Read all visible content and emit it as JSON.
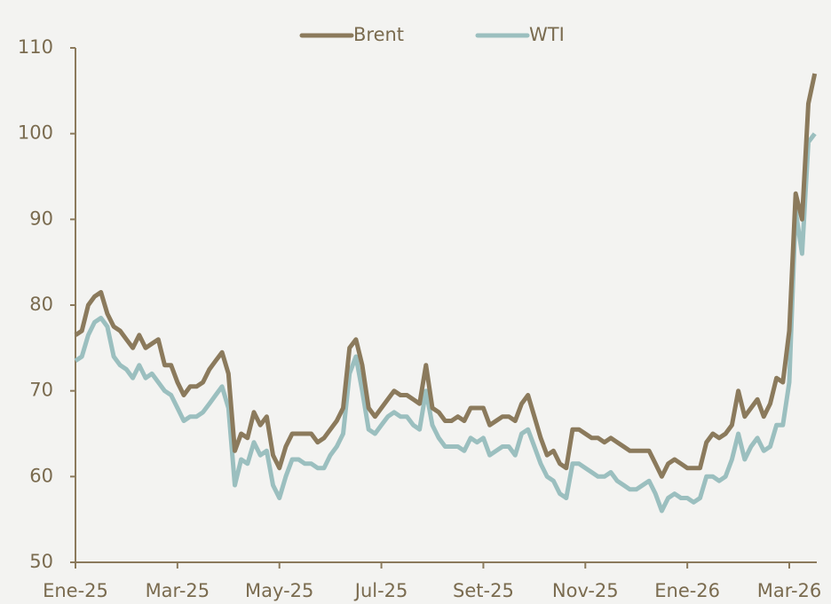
{
  "chart_data": {
    "type": "line",
    "categories": [
      "Ene-25",
      null,
      null,
      null,
      null,
      null,
      null,
      null,
      null,
      null,
      null,
      null,
      null,
      null,
      null,
      null,
      "Mar-25",
      null,
      null,
      null,
      null,
      null,
      null,
      null,
      null,
      null,
      null,
      null,
      null,
      null,
      null,
      null,
      "May-25",
      null,
      null,
      null,
      null,
      null,
      null,
      null,
      null,
      null,
      null,
      null,
      null,
      null,
      null,
      null,
      "Jul-25",
      null,
      null,
      null,
      null,
      null,
      null,
      null,
      null,
      null,
      null,
      null,
      null,
      null,
      null,
      null,
      "Set-25",
      null,
      null,
      null,
      null,
      null,
      null,
      null,
      null,
      null,
      null,
      null,
      null,
      null,
      null,
      null,
      "Nov-25",
      null,
      null,
      null,
      null,
      null,
      null,
      null,
      null,
      null,
      null,
      null,
      null,
      null,
      null,
      null,
      "Ene-26",
      null,
      null,
      null,
      null,
      null,
      null,
      null,
      null,
      null,
      null,
      null,
      null,
      null,
      null,
      null,
      "Mar-26",
      null,
      null,
      null,
      null
    ],
    "series": [
      {
        "name": "Brent",
        "color": "#8b7a5c",
        "values": [
          76.5,
          77,
          80,
          81,
          81.5,
          79,
          77.5,
          77,
          76,
          75,
          76.5,
          75,
          75.5,
          76,
          73,
          73,
          71,
          69.5,
          70.5,
          70.5,
          71,
          72.5,
          73.5,
          74.5,
          72,
          63,
          65,
          64.5,
          67.5,
          66,
          67,
          62.5,
          61,
          63.5,
          65,
          65,
          65,
          65,
          64,
          64.5,
          65.5,
          66.5,
          68,
          75,
          76,
          73,
          68,
          67,
          68,
          69,
          70,
          69.5,
          69.5,
          69,
          68.5,
          73,
          68,
          67.5,
          66.5,
          66.5,
          67,
          66.5,
          68,
          68,
          68,
          66,
          66.5,
          67,
          67,
          66.5,
          68.5,
          69.5,
          67,
          64.5,
          62.5,
          63,
          61.5,
          61,
          65.5,
          65.5,
          65,
          64.5,
          64.5,
          64,
          64.5,
          64,
          63.5,
          63,
          63,
          63,
          63,
          61.5,
          60,
          61.5,
          62,
          61.5,
          61,
          61,
          61,
          64,
          65,
          64.5,
          65,
          66,
          70,
          67,
          68,
          69,
          67,
          68.5,
          71.5,
          71,
          77,
          93,
          90,
          103.5,
          107
        ]
      },
      {
        "name": "WTI",
        "color": "#9bbfbf",
        "values": [
          73.5,
          74,
          76.5,
          78,
          78.5,
          77.5,
          74,
          73,
          72.5,
          71.5,
          73,
          71.5,
          72,
          71,
          70,
          69.5,
          68,
          66.5,
          67,
          67,
          67.5,
          68.5,
          69.5,
          70.5,
          68,
          59,
          62,
          61.5,
          64,
          62.5,
          63,
          59,
          57.5,
          60,
          62,
          62,
          61.5,
          61.5,
          61,
          61,
          62.5,
          63.5,
          65,
          72,
          74,
          70,
          65.5,
          65,
          66,
          67,
          67.5,
          67,
          67,
          66,
          65.5,
          70,
          66,
          64.5,
          63.5,
          63.5,
          63.5,
          63,
          64.5,
          64,
          64.5,
          62.5,
          63,
          63.5,
          63.5,
          62.5,
          65,
          65.5,
          63.5,
          61.5,
          60,
          59.5,
          58,
          57.5,
          61.5,
          61.5,
          61,
          60.5,
          60,
          60,
          60.5,
          59.5,
          59,
          58.5,
          58.5,
          59,
          59.5,
          58,
          56,
          57.5,
          58,
          57.5,
          57.5,
          57,
          57.5,
          60,
          60,
          59.5,
          60,
          62,
          65,
          62,
          63.5,
          64.5,
          63,
          63.5,
          66,
          66,
          71,
          91,
          86,
          99,
          100
        ]
      }
    ],
    "ylim": [
      50,
      110
    ],
    "yticks": [
      50,
      60,
      70,
      80,
      90,
      100,
      110
    ],
    "grid": false,
    "legend": "top"
  }
}
